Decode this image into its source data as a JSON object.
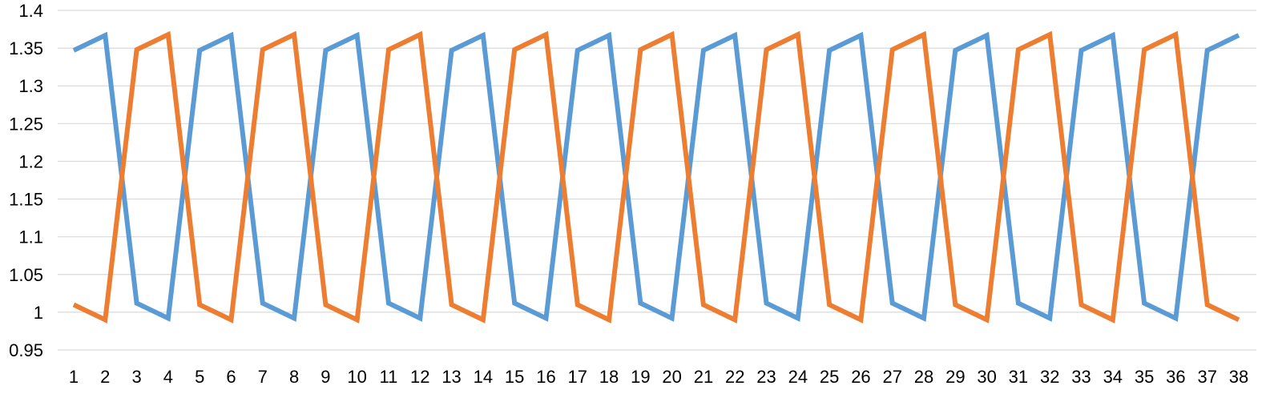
{
  "chart_data": {
    "type": "line",
    "title": "",
    "xlabel": "",
    "ylabel": "",
    "x": [
      1,
      2,
      3,
      4,
      5,
      6,
      7,
      8,
      9,
      10,
      11,
      12,
      13,
      14,
      15,
      16,
      17,
      18,
      19,
      20,
      21,
      22,
      23,
      24,
      25,
      26,
      27,
      28,
      29,
      30,
      31,
      32,
      33,
      34,
      35,
      36,
      37,
      38
    ],
    "ylim": [
      0.95,
      1.4
    ],
    "yticks": [
      0.95,
      1,
      1.05,
      1.1,
      1.15,
      1.2,
      1.25,
      1.3,
      1.35,
      1.4
    ],
    "ytick_labels": [
      "0.95",
      "1",
      "1.05",
      "1.1",
      "1.15",
      "1.2",
      "1.25",
      "1.3",
      "1.35",
      "1.4"
    ],
    "grid": true,
    "legend": "none",
    "series": [
      {
        "color": "#5b9bd5",
        "values": [
          1.347,
          1.367,
          1.012,
          0.992,
          1.347,
          1.367,
          1.012,
          0.992,
          1.347,
          1.367,
          1.012,
          0.992,
          1.347,
          1.367,
          1.012,
          0.992,
          1.347,
          1.367,
          1.012,
          0.992,
          1.347,
          1.367,
          1.012,
          0.992,
          1.347,
          1.367,
          1.012,
          0.992,
          1.347,
          1.367,
          1.012,
          0.992,
          1.347,
          1.367,
          1.012,
          0.992,
          1.347,
          1.367
        ]
      },
      {
        "color": "#ed7d31",
        "values": [
          1.01,
          0.99,
          1.348,
          1.368,
          1.01,
          0.99,
          1.348,
          1.368,
          1.01,
          0.99,
          1.348,
          1.368,
          1.01,
          0.99,
          1.348,
          1.368,
          1.01,
          0.99,
          1.348,
          1.368,
          1.01,
          0.99,
          1.348,
          1.368,
          1.01,
          0.99,
          1.348,
          1.368,
          1.01,
          0.99,
          1.348,
          1.368,
          1.01,
          0.99,
          1.348,
          1.368,
          1.01,
          0.99
        ]
      }
    ]
  }
}
